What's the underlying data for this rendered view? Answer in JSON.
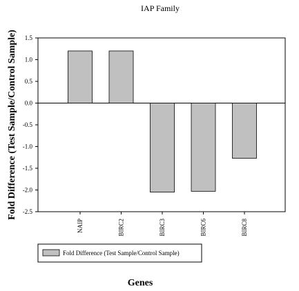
{
  "chart_data": {
    "type": "bar",
    "title": "IAP Family",
    "categories": [
      "NAIP",
      "BIRC2",
      "BIRC3",
      "BIRC6",
      "BIRC8"
    ],
    "series": [
      {
        "name": "Fold Difference (Test Sample/Control Sample)",
        "values": [
          1.2,
          1.2,
          -2.05,
          -2.03,
          -1.27
        ]
      }
    ],
    "xlabel": "Genes",
    "ylabel": "Fold Difference (Test Sample/Control Sample)",
    "ylim": [
      -2.5,
      1.5
    ],
    "yticks": [
      "1.5",
      "1.0",
      "0.5",
      "0.0",
      "-0.5",
      "-1.0",
      "-1.5",
      "-2.0",
      "-2.5"
    ],
    "grid": false,
    "legend_position": "bottom-left",
    "colors": {
      "bar_fill": "#c0c0c0",
      "bar_stroke": "#000000",
      "axis": "#000000"
    }
  }
}
